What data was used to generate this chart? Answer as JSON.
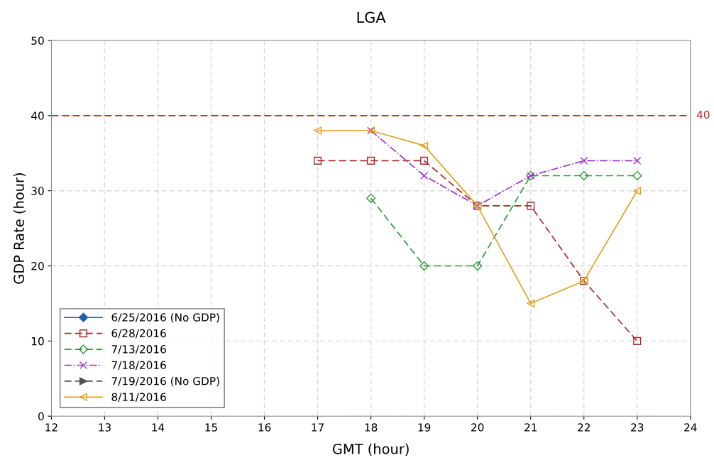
{
  "chart_data": {
    "type": "line",
    "title": "LGA",
    "xlabel": "GMT (hour)",
    "ylabel": "GDP Rate (hour)",
    "x": [
      17,
      18,
      19,
      20,
      21,
      22,
      23
    ],
    "series": [
      {
        "name": "6/25/2016 (No GDP)",
        "color": "#1f5fb0",
        "marker": "diamond",
        "line_style": "solid",
        "values": [
          null,
          null,
          null,
          null,
          null,
          null,
          null
        ]
      },
      {
        "name": "6/28/2016",
        "color": "#a52a2a",
        "marker": "square",
        "line_style": "dashed",
        "values": [
          34,
          34,
          34,
          28,
          28,
          18,
          10
        ]
      },
      {
        "name": "7/13/2016",
        "color": "#2e9a3a",
        "marker": "diamond",
        "line_style": "dashed",
        "values": [
          null,
          29,
          20,
          20,
          32,
          32,
          32
        ]
      },
      {
        "name": "7/18/2016",
        "color": "#9b30d9",
        "marker": "cross",
        "line_style": "dashdot",
        "values": [
          null,
          38,
          32,
          28,
          32,
          34,
          34
        ]
      },
      {
        "name": "7/19/2016 (No GDP)",
        "color": "#505050",
        "marker": "triangle_right",
        "line_style": "dashed",
        "values": [
          null,
          null,
          null,
          null,
          null,
          null,
          null
        ]
      },
      {
        "name": "8/11/2016",
        "color": "#e0a020",
        "marker": "triangle_left",
        "line_style": "solid",
        "values": [
          38,
          38,
          36,
          28,
          15,
          18,
          30
        ]
      }
    ],
    "xlim": [
      12,
      24
    ],
    "xticks": [
      12,
      13,
      14,
      15,
      16,
      17,
      18,
      19,
      20,
      21,
      22,
      23,
      24
    ],
    "ylim": [
      0,
      50
    ],
    "yticks": [
      0,
      10,
      20,
      30,
      40,
      50
    ],
    "ref_lines": [
      {
        "axis": "y",
        "value": 40,
        "label": "40",
        "color": "#c0282a",
        "line_style": "dashed"
      }
    ],
    "grid": true,
    "legend": "bottom left"
  }
}
